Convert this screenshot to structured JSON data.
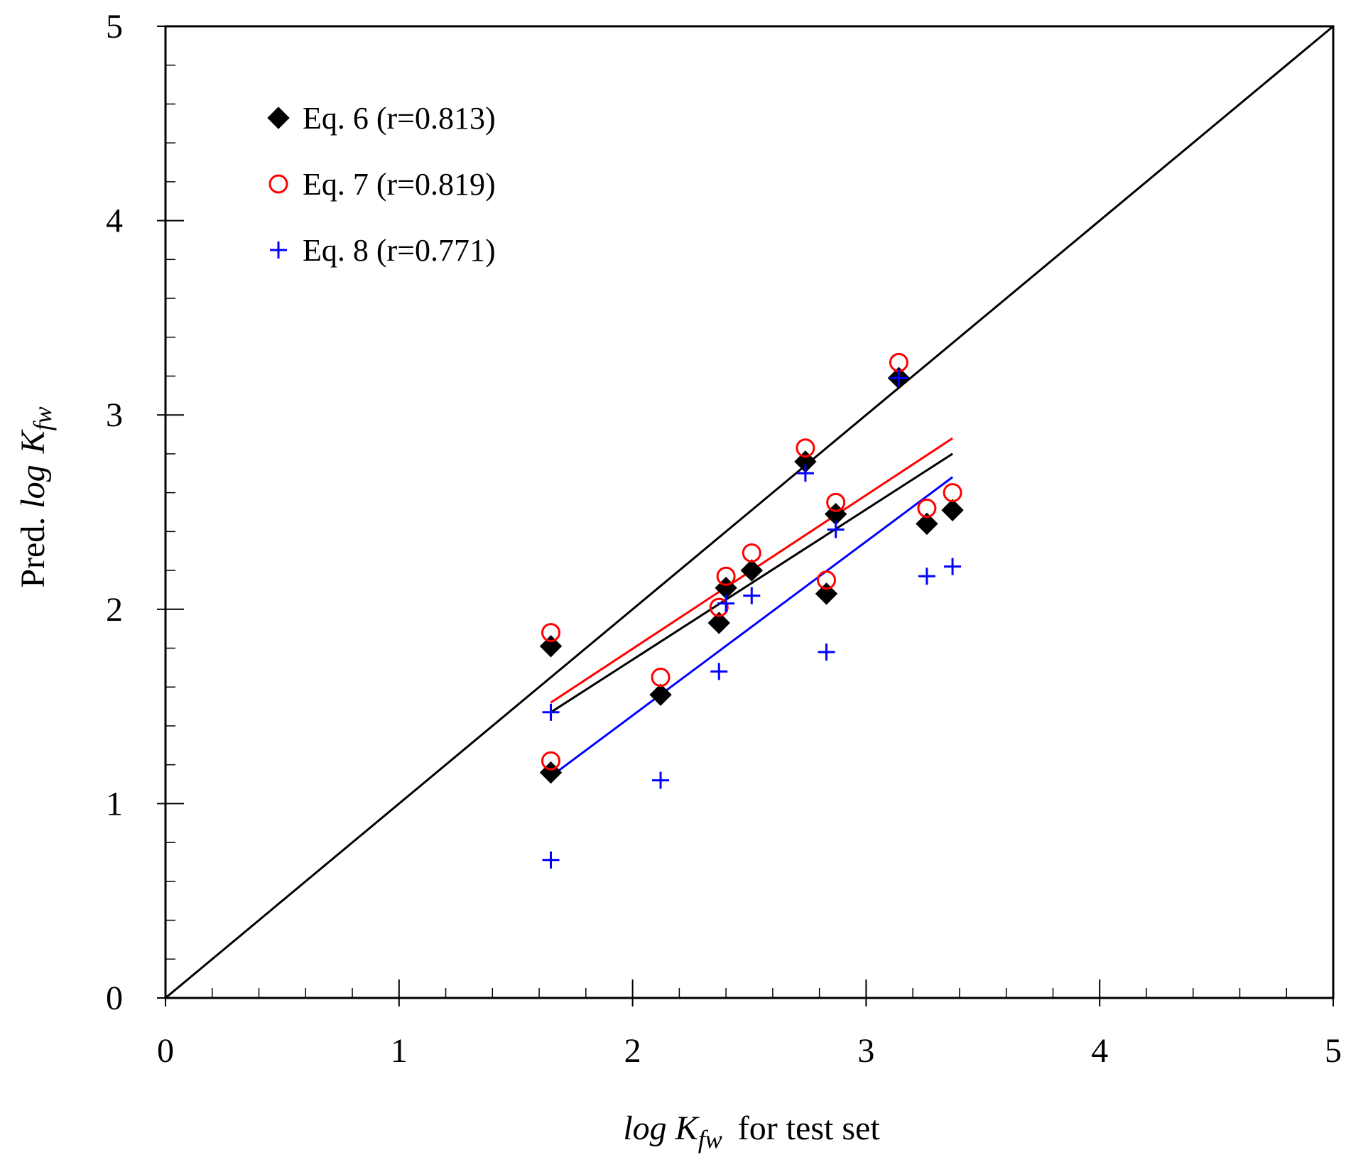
{
  "chart_data": {
    "type": "scatter",
    "xlim": [
      0,
      5
    ],
    "ylim": [
      0,
      5
    ],
    "major_ticks": [
      "0",
      "1",
      "2",
      "3",
      "4",
      "5"
    ],
    "major_tick_values": [
      0,
      1,
      2,
      3,
      4,
      5
    ],
    "minor_tick_step": 0.2,
    "grid": false,
    "legend_position": "top-left",
    "xlabel": {
      "italic": "log K",
      "subscript": "fw",
      "suffix": "for test set"
    },
    "ylabel": {
      "prefix": "Pred.",
      "italic": "log",
      "italic2": "K",
      "subscript": "fw"
    },
    "identity_line": {
      "from": [
        0,
        0
      ],
      "to": [
        5,
        5
      ],
      "color": "#000000"
    },
    "series": [
      {
        "name": "Eq. 6 (r=0.813)",
        "marker": "diamond",
        "color": "#000000",
        "points": [
          [
            1.65,
            1.81
          ],
          [
            1.65,
            1.16
          ],
          [
            2.12,
            1.56
          ],
          [
            2.37,
            1.93
          ],
          [
            2.4,
            2.11
          ],
          [
            2.51,
            2.2
          ],
          [
            2.74,
            2.76
          ],
          [
            2.83,
            2.08
          ],
          [
            2.87,
            2.49
          ],
          [
            3.14,
            3.19
          ],
          [
            3.26,
            2.44
          ],
          [
            3.37,
            2.51
          ]
        ],
        "fit_line": [
          [
            1.65,
            1.47
          ],
          [
            3.37,
            2.8
          ]
        ]
      },
      {
        "name": "Eq. 7 (r=0.819)",
        "marker": "circle",
        "color": "#ff0000",
        "points": [
          [
            1.65,
            1.88
          ],
          [
            1.65,
            1.22
          ],
          [
            2.12,
            1.65
          ],
          [
            2.37,
            2.01
          ],
          [
            2.4,
            2.17
          ],
          [
            2.51,
            2.29
          ],
          [
            2.74,
            2.83
          ],
          [
            2.83,
            2.15
          ],
          [
            2.87,
            2.55
          ],
          [
            3.14,
            3.27
          ],
          [
            3.26,
            2.52
          ],
          [
            3.37,
            2.6
          ]
        ],
        "fit_line": [
          [
            1.65,
            1.52
          ],
          [
            3.37,
            2.88
          ]
        ]
      },
      {
        "name": "Eq. 8 (r=0.771)",
        "marker": "plus",
        "color": "#0000ff",
        "points": [
          [
            1.65,
            1.47
          ],
          [
            1.65,
            0.71
          ],
          [
            2.12,
            1.12
          ],
          [
            2.37,
            1.68
          ],
          [
            2.4,
            2.03
          ],
          [
            2.51,
            2.07
          ],
          [
            2.74,
            2.7
          ],
          [
            2.83,
            1.78
          ],
          [
            2.87,
            2.41
          ],
          [
            3.14,
            3.19
          ],
          [
            3.26,
            2.17
          ],
          [
            3.37,
            2.22
          ]
        ],
        "fit_line": [
          [
            1.65,
            1.14
          ],
          [
            3.37,
            2.68
          ]
        ]
      }
    ]
  }
}
